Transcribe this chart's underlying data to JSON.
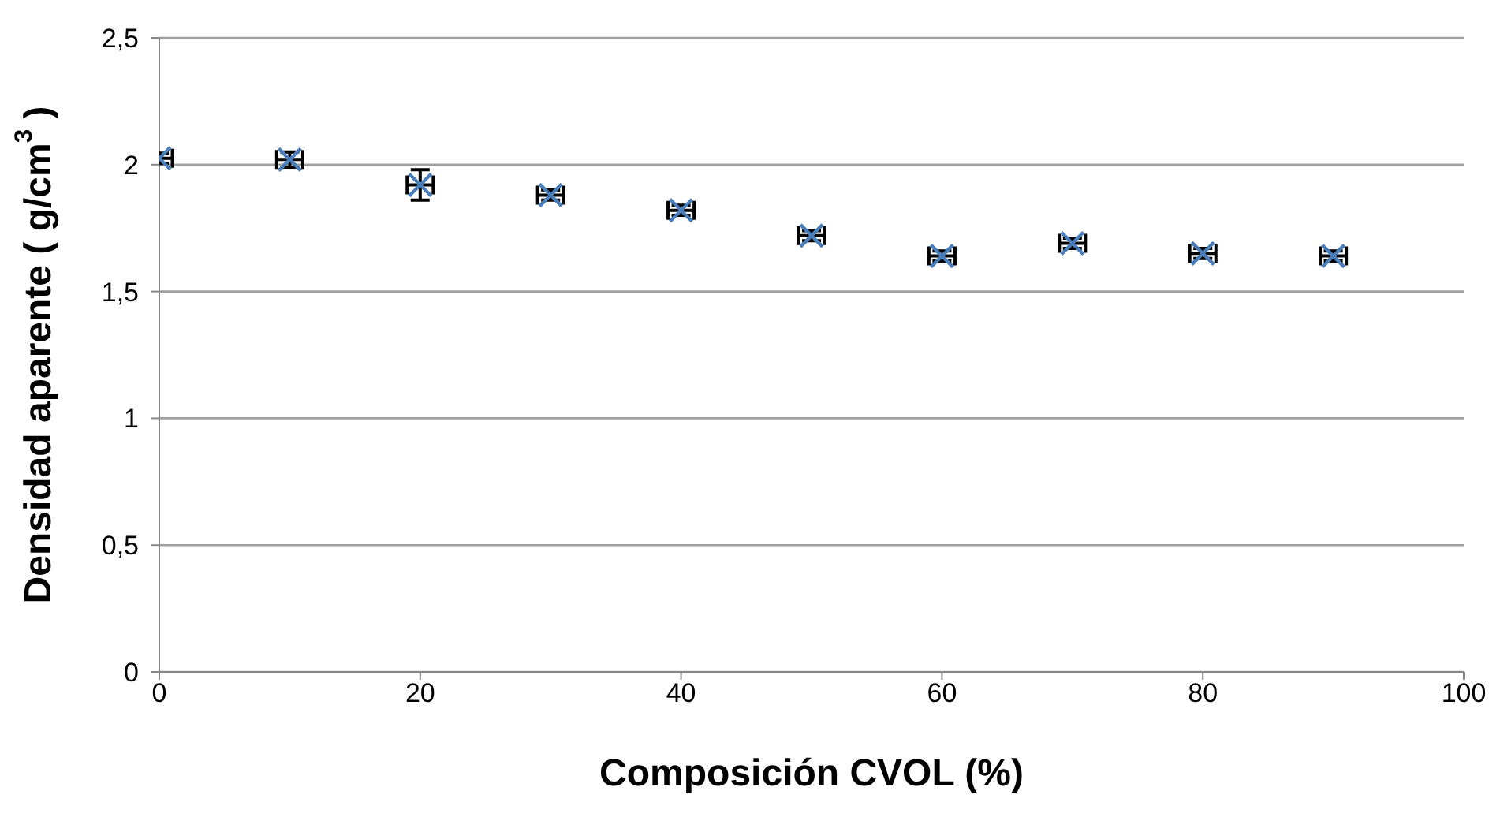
{
  "chart_data": {
    "type": "scatter",
    "xlabel": "Composición CVOL (%)",
    "ylabel": "Densidad aparente ( g/cm$^{3}$ )",
    "x": [
      0,
      10,
      20,
      30,
      40,
      50,
      60,
      70,
      80,
      90
    ],
    "series": [
      {
        "color": "#4a7ebb",
        "values": [
          2.025,
          2.02,
          1.92,
          1.88,
          1.82,
          1.72,
          1.64,
          1.69,
          1.65,
          1.64
        ],
        "errors": [
          0.02,
          0.03,
          0.06,
          0.02,
          0.02,
          0.02,
          0.02,
          0.02,
          0.02,
          0.02
        ],
        "xerrors": [
          1,
          1,
          1,
          1,
          1,
          1,
          1,
          1,
          1,
          1
        ]
      }
    ],
    "marker": "cross",
    "xlim": [
      0,
      100
    ],
    "xticks": [
      0,
      20,
      40,
      60,
      80,
      100
    ],
    "ylim": [
      0,
      2.5
    ],
    "yticks": [
      {
        "value": 0,
        "label": "0"
      },
      {
        "value": 0.5,
        "label": "0,5"
      },
      {
        "value": 1,
        "label": "1"
      },
      {
        "value": 1.5,
        "label": "1,5"
      },
      {
        "value": 2,
        "label": "2"
      },
      {
        "value": 2.5,
        "label": "2,5"
      }
    ],
    "grid": "y",
    "legend": false
  }
}
